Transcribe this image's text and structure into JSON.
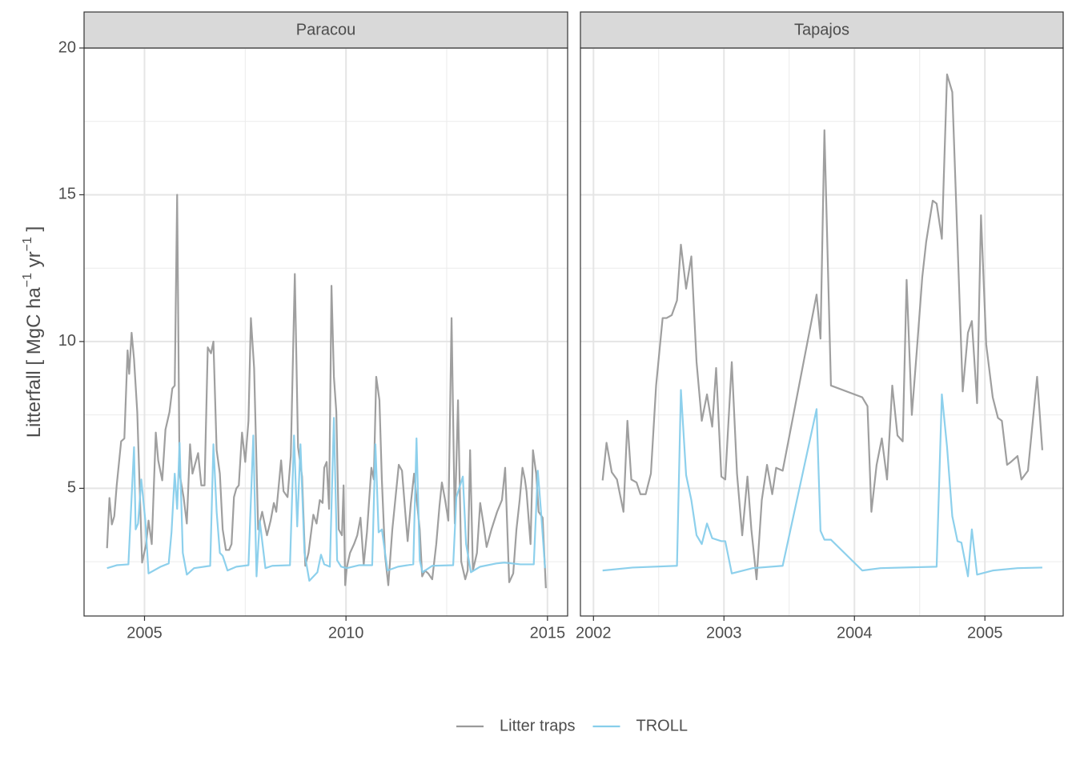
{
  "chart_data": {
    "type": "line",
    "y_label": [
      "Litterfall [ MgC ha",
      "−1",
      " yr",
      "−1",
      " ]"
    ],
    "ylim": [
      0.65,
      20
    ],
    "yticks": [
      5,
      10,
      15,
      20
    ],
    "grid": true,
    "legend": "bottom",
    "series": [
      {
        "name": "Litter traps",
        "color": "#9a9a9a"
      },
      {
        "name": "TROLL",
        "color": "#87ceeb"
      }
    ],
    "facets": [
      {
        "title": "Paracou",
        "xlim": [
          2003.5,
          2015.5
        ],
        "xticks": [
          2005,
          2010,
          2015
        ],
        "series": [
          {
            "x": [
              2004.07,
              2004.13,
              2004.19,
              2004.25,
              2004.31,
              2004.42,
              2004.5,
              2004.58,
              2004.62,
              2004.68,
              2004.74,
              2004.82,
              2004.94,
              2005.04,
              2005.1,
              2005.18,
              2005.28,
              2005.34,
              2005.44,
              2005.52,
              2005.62,
              2005.69,
              2005.75,
              2005.81,
              2005.87,
              2005.97,
              2006.05,
              2006.13,
              2006.19,
              2006.33,
              2006.41,
              2006.49,
              2006.57,
              2006.65,
              2006.71,
              2006.79,
              2006.87,
              2006.94,
              2007.02,
              2007.1,
              2007.16,
              2007.22,
              2007.28,
              2007.34,
              2007.42,
              2007.5,
              2007.58,
              2007.64,
              2007.72,
              2007.82,
              2007.92,
              2008.04,
              2008.13,
              2008.21,
              2008.27,
              2008.39,
              2008.45,
              2008.55,
              2008.63,
              2008.73,
              2008.81,
              2008.91,
              2008.99,
              2009.07,
              2009.19,
              2009.27,
              2009.35,
              2009.42,
              2009.46,
              2009.52,
              2009.58,
              2009.64,
              2009.7,
              2009.76,
              2009.82,
              2009.9,
              2009.94,
              2009.98,
              2010.02,
              2010.1,
              2010.2,
              2010.28,
              2010.36,
              2010.44,
              2010.52,
              2010.63,
              2010.69,
              2010.75,
              2010.83,
              2010.89,
              2010.97,
              2011.05,
              2011.15,
              2011.23,
              2011.31,
              2011.39,
              2011.47,
              2011.53,
              2011.61,
              2011.69,
              2011.77,
              2011.83,
              2011.89,
              2011.96,
              2012.04,
              2012.14,
              2012.24,
              2012.32,
              2012.38,
              2012.46,
              2012.54,
              2012.62,
              2012.7,
              2012.78,
              2012.86,
              2012.96,
              2013.02,
              2013.08,
              2013.15,
              2013.25,
              2013.33,
              2013.41,
              2013.49,
              2013.61,
              2013.75,
              2013.87,
              2013.95,
              2014.05,
              2014.15,
              2014.23,
              2014.31,
              2014.38,
              2014.44,
              2014.48,
              2014.58,
              2014.64,
              2014.72,
              2014.78,
              2014.88,
              2014.96
            ],
            "values": [
              2.96,
              4.67,
              3.77,
              4.05,
              5.1,
              6.6,
              6.7,
              9.7,
              8.9,
              10.3,
              9.4,
              7.6,
              2.47,
              3.1,
              3.9,
              3.1,
              6.9,
              5.95,
              5.27,
              7.0,
              7.6,
              8.4,
              8.5,
              15.0,
              5.5,
              4.7,
              3.8,
              6.5,
              5.5,
              6.2,
              5.1,
              5.1,
              9.8,
              9.6,
              10.0,
              6.3,
              5.5,
              3.6,
              2.9,
              2.9,
              3.1,
              4.7,
              5.0,
              5.1,
              6.9,
              5.9,
              7.3,
              10.8,
              9.1,
              3.6,
              4.2,
              3.4,
              3.9,
              4.5,
              4.2,
              5.95,
              4.9,
              4.7,
              6.1,
              12.3,
              6.4,
              5.4,
              2.36,
              2.8,
              4.1,
              3.8,
              4.6,
              4.5,
              5.7,
              5.9,
              4.3,
              11.9,
              8.8,
              7.6,
              3.6,
              3.4,
              5.1,
              1.7,
              2.3,
              2.8,
              3.1,
              3.4,
              4.0,
              2.4,
              3.5,
              5.7,
              5.3,
              8.8,
              8.0,
              5.3,
              2.7,
              1.7,
              3.6,
              4.7,
              5.8,
              5.6,
              4.2,
              3.2,
              4.5,
              5.5,
              4.4,
              3.6,
              2.0,
              2.2,
              2.1,
              1.9,
              3.1,
              4.4,
              5.2,
              4.6,
              3.9,
              10.8,
              3.8,
              8.0,
              2.5,
              1.9,
              2.2,
              6.3,
              2.2,
              2.8,
              4.5,
              3.8,
              3.0,
              3.6,
              4.2,
              4.6,
              5.7,
              1.8,
              2.1,
              3.6,
              4.6,
              5.7,
              5.3,
              4.9,
              3.1,
              6.3,
              5.5,
              4.2,
              4.0,
              1.6
            ]
          },
          {
            "x": [
              2004.07,
              2004.31,
              2004.6,
              2004.74,
              2004.78,
              2004.84,
              2004.92,
              2005.02,
              2005.1,
              2005.4,
              2005.6,
              2005.67,
              2005.75,
              2005.81,
              2005.87,
              2005.95,
              2006.05,
              2006.23,
              2006.63,
              2006.71,
              2006.79,
              2006.87,
              2006.94,
              2007.06,
              2007.28,
              2007.58,
              2007.7,
              2007.78,
              2007.86,
              2008.0,
              2008.17,
              2008.61,
              2008.71,
              2008.79,
              2008.87,
              2008.97,
              2009.09,
              2009.29,
              2009.38,
              2009.46,
              2009.6,
              2009.7,
              2009.78,
              2009.88,
              2010.02,
              2010.32,
              2010.65,
              2010.73,
              2010.81,
              2010.89,
              2011.03,
              2011.29,
              2011.67,
              2011.75,
              2011.83,
              2011.9,
              2012.14,
              2012.66,
              2012.74,
              2012.9,
              2012.98,
              2013.1,
              2013.33,
              2013.73,
              2013.93,
              2014.33,
              2014.66,
              2014.76,
              2014.84,
              2014.94
            ],
            "values": [
              2.28,
              2.38,
              2.41,
              6.4,
              3.6,
              3.8,
              5.3,
              3.9,
              2.1,
              2.33,
              2.44,
              3.5,
              5.5,
              4.3,
              6.55,
              2.8,
              2.06,
              2.28,
              2.36,
              6.5,
              4.2,
              2.8,
              2.7,
              2.2,
              2.33,
              2.38,
              6.8,
              2.0,
              3.9,
              2.28,
              2.36,
              2.38,
              6.8,
              3.7,
              6.5,
              2.8,
              1.85,
              2.14,
              2.74,
              2.41,
              2.33,
              7.4,
              2.55,
              2.33,
              2.28,
              2.38,
              2.38,
              6.5,
              3.5,
              3.6,
              2.2,
              2.33,
              2.41,
              6.7,
              2.55,
              2.14,
              2.36,
              2.38,
              4.7,
              5.4,
              3.1,
              2.14,
              2.33,
              2.44,
              2.47,
              2.41,
              2.41,
              5.6,
              4.2,
              2.28
            ]
          }
        ]
      },
      {
        "title": "Tapajos",
        "xlim": [
          2001.9,
          2005.6
        ],
        "xticks": [
          2002,
          2003,
          2004,
          2005
        ],
        "series": [
          {
            "x": [
              2002.07,
              2002.1,
              2002.14,
              2002.18,
              2002.23,
              2002.26,
              2002.29,
              2002.33,
              2002.36,
              2002.4,
              2002.44,
              2002.48,
              2002.53,
              2002.56,
              2002.6,
              2002.64,
              2002.67,
              2002.71,
              2002.75,
              2002.79,
              2002.83,
              2002.87,
              2002.91,
              2002.94,
              2002.98,
              2003.01,
              2003.06,
              2003.1,
              2003.14,
              2003.18,
              2003.21,
              2003.25,
              2003.29,
              2003.33,
              2003.37,
              2003.4,
              2003.45,
              2003.71,
              2003.74,
              2003.77,
              2003.82,
              2004.06,
              2004.1,
              2004.13,
              2004.17,
              2004.21,
              2004.25,
              2004.29,
              2004.33,
              2004.37,
              2004.4,
              2004.44,
              2004.48,
              2004.52,
              2004.55,
              2004.6,
              2004.63,
              2004.67,
              2004.71,
              2004.75,
              2004.83,
              2004.87,
              2004.9,
              2004.94,
              2004.97,
              2005.01,
              2005.06,
              2005.1,
              2005.13,
              2005.17,
              2005.2,
              2005.25,
              2005.28,
              2005.33,
              2005.4,
              2005.44
            ],
            "values": [
              5.27,
              6.55,
              5.55,
              5.3,
              4.2,
              7.3,
              5.3,
              5.2,
              4.8,
              4.8,
              5.5,
              8.5,
              10.8,
              10.8,
              10.9,
              11.4,
              13.3,
              11.8,
              12.9,
              9.3,
              7.3,
              8.2,
              7.1,
              9.1,
              5.4,
              5.3,
              9.3,
              5.5,
              3.4,
              5.4,
              3.6,
              1.9,
              4.6,
              5.8,
              4.8,
              5.7,
              5.6,
              11.6,
              10.1,
              17.2,
              8.5,
              8.1,
              7.8,
              4.2,
              5.8,
              6.7,
              5.3,
              8.5,
              6.8,
              6.6,
              12.1,
              7.5,
              9.8,
              12.2,
              13.4,
              14.8,
              14.7,
              13.5,
              19.1,
              18.5,
              8.3,
              10.3,
              10.7,
              7.9,
              14.3,
              9.9,
              8.1,
              7.4,
              7.3,
              5.8,
              5.9,
              6.1,
              5.3,
              5.6,
              8.8,
              6.3
            ]
          },
          {
            "x": [
              2002.07,
              2002.3,
              2002.64,
              2002.67,
              2002.71,
              2002.75,
              2002.79,
              2002.83,
              2002.87,
              2002.91,
              2002.98,
              2003.01,
              2003.06,
              2003.22,
              2003.45,
              2003.71,
              2003.74,
              2003.77,
              2003.82,
              2004.06,
              2004.2,
              2004.63,
              2004.67,
              2004.71,
              2004.75,
              2004.79,
              2004.82,
              2004.87,
              2004.9,
              2004.94,
              2005.06,
              2005.25,
              2005.44
            ],
            "values": [
              2.2,
              2.3,
              2.36,
              8.35,
              5.45,
              4.6,
              3.4,
              3.1,
              3.8,
              3.3,
              3.2,
              3.2,
              2.1,
              2.28,
              2.36,
              7.7,
              3.55,
              3.25,
              3.25,
              2.2,
              2.28,
              2.33,
              8.2,
              6.4,
              4.05,
              3.2,
              3.15,
              2.0,
              3.6,
              2.06,
              2.2,
              2.28,
              2.3
            ]
          }
        ]
      }
    ]
  }
}
